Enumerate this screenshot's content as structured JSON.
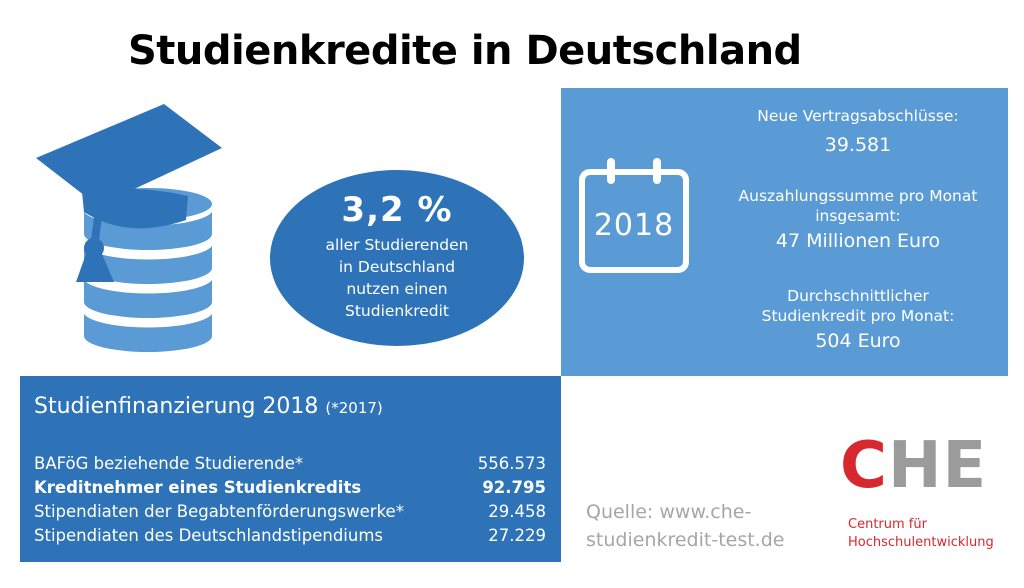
{
  "title": "Studienkredite in Deutschland",
  "colors": {
    "panel_blue": "#2e73b8",
    "panel_light_blue": "#5b9bd5",
    "che_red": "#d7282f",
    "che_gray": "#9b9b9b",
    "source_gray": "#a6a6a6"
  },
  "icons": {
    "graduation": "graduation-cap-coins-icon",
    "calendar": "calendar-icon"
  },
  "stat": {
    "percent": "3,2 %",
    "lines": [
      "aller Studierenden",
      "in Deutschland",
      "nutzen einen",
      "Studienkredit"
    ]
  },
  "info_panel": {
    "year": "2018",
    "items": [
      {
        "label_lines": [
          "Neue Vertragsabschlüsse:"
        ],
        "value": "39.581"
      },
      {
        "label_lines": [
          "Auszahlungssumme pro Monat",
          "insgesamt:"
        ],
        "value": "47 Millionen Euro"
      },
      {
        "label_lines": [
          "Durchschnittlicher",
          "Studienkredit pro Monat:"
        ],
        "value": "504 Euro"
      }
    ]
  },
  "financing": {
    "title": "Studienfinanzierung 2018",
    "title_note": "(*2017)",
    "rows": [
      {
        "label": "BAFöG beziehende Studierende*",
        "value": "556.573",
        "bold": false
      },
      {
        "label": "Kreditnehmer eines Studienkredits",
        "value": "92.795",
        "bold": true
      },
      {
        "label": "Stipendiaten der Begabtenförderungswerke*",
        "value": "29.458",
        "bold": false
      },
      {
        "label": "Stipendiaten des Deutschlandstipendiums",
        "value": "27.229",
        "bold": false
      }
    ]
  },
  "source": {
    "lines": [
      "Quelle: www.che-",
      "studienkredit-test.de"
    ]
  },
  "logo": {
    "letter_c": "C",
    "letters_he": "HE",
    "lines": [
      "Centrum für",
      "Hochschulentwicklung"
    ]
  }
}
